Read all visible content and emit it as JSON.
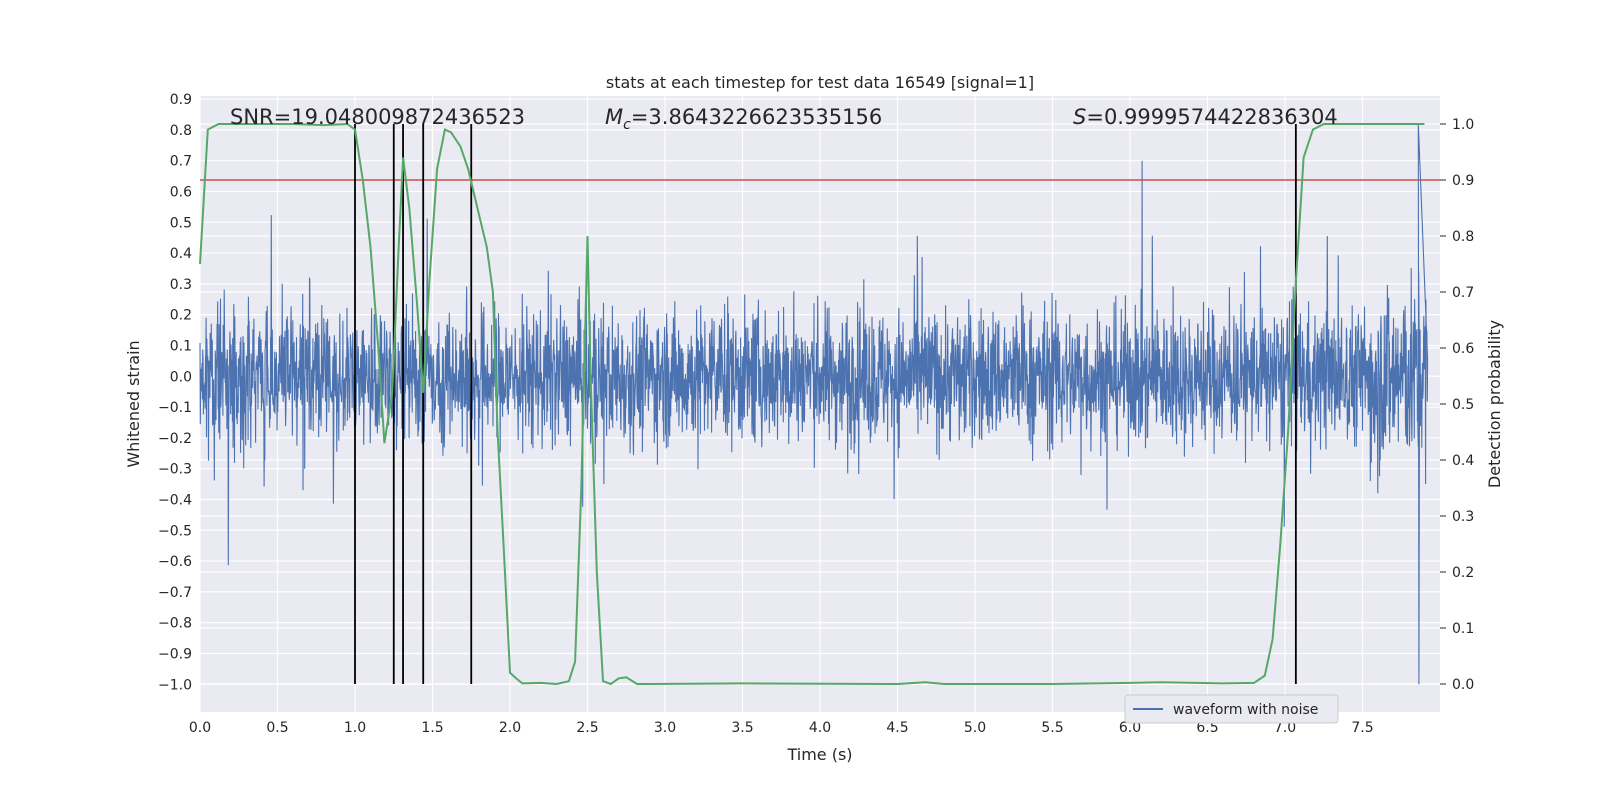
{
  "chart_data": {
    "type": "line",
    "title": "stats at each timestep for test data 16549 [signal=1]",
    "xlabel": "Time (s)",
    "ylabel_left": "Whitened strain",
    "ylabel_right": "Detection probability",
    "xlim": [
      0.0,
      8.0
    ],
    "ylim_left": [
      -1.09,
      0.91
    ],
    "ylim_right": [
      -0.05,
      1.05
    ],
    "x_ticks": [
      "0.0",
      "0.5",
      "1.0",
      "1.5",
      "2.0",
      "2.5",
      "3.0",
      "3.5",
      "4.0",
      "4.5",
      "5.0",
      "5.5",
      "6.0",
      "6.5",
      "7.0",
      "7.5"
    ],
    "y_left_ticks": [
      "0.9",
      "0.8",
      "0.7",
      "0.6",
      "0.5",
      "0.4",
      "0.3",
      "0.2",
      "0.1",
      "0.0",
      "−0.1",
      "−0.2",
      "−0.3",
      "−0.4",
      "−0.5",
      "−0.6",
      "−0.7",
      "−0.8",
      "−0.9",
      "−1.0"
    ],
    "y_right_ticks": [
      "1.0",
      "0.9",
      "0.8",
      "0.7",
      "0.6",
      "0.5",
      "0.4",
      "0.3",
      "0.2",
      "0.1",
      "0.0"
    ],
    "annotations": {
      "snr_text": "SNR=19.048009872436523",
      "mc_prefix": "M",
      "mc_sub": "c",
      "mc_value": "=3.8643226623535156",
      "s_prefix": "S",
      "s_value": "=0.9999574422836304"
    },
    "threshold_probability": 0.9,
    "threshold_color": "#c44e52",
    "vertical_markers": [
      1.0,
      1.25,
      1.31,
      1.44,
      1.75,
      7.07
    ],
    "grid": true,
    "legend_placement": "lower-right",
    "series": [
      {
        "name": "waveform with noise",
        "axis": "left",
        "color": "#4c72b0",
        "description": "noisy whitened strain, approx. ±0.3 amplitude with spikes to ±0.7; max spike ~0.82 near 7.86 s, min ~−1.0 near 7.86 s",
        "envelope": {
          "typical_amplitude": 0.3,
          "spike_max": 0.82,
          "spike_min": -1.0
        }
      },
      {
        "axis": "right",
        "color": "#55a868",
        "x": [
          0.0,
          0.05,
          0.12,
          0.3,
          0.6,
          0.8,
          0.95,
          1.0,
          1.05,
          1.1,
          1.15,
          1.19,
          1.24,
          1.28,
          1.31,
          1.35,
          1.4,
          1.44,
          1.48,
          1.53,
          1.58,
          1.62,
          1.68,
          1.73,
          1.79,
          1.85,
          1.89,
          1.92,
          1.96,
          2.0,
          2.04,
          2.08,
          2.2,
          2.3,
          2.38,
          2.42,
          2.46,
          2.5,
          2.52,
          2.56,
          2.6,
          2.65,
          2.7,
          2.75,
          2.82,
          2.9,
          3.5,
          4.5,
          4.68,
          4.8,
          5.5,
          6.0,
          6.2,
          6.6,
          6.8,
          6.87,
          6.92,
          6.97,
          7.02,
          7.07,
          7.12,
          7.18,
          7.25,
          7.35,
          7.6,
          7.9
        ],
        "y": [
          0.75,
          0.99,
          1.0,
          1.0,
          1.0,
          0.998,
          1.0,
          0.99,
          0.9,
          0.78,
          0.6,
          0.43,
          0.52,
          0.77,
          0.94,
          0.85,
          0.68,
          0.52,
          0.72,
          0.92,
          0.99,
          0.985,
          0.96,
          0.92,
          0.85,
          0.78,
          0.7,
          0.45,
          0.24,
          0.02,
          0.01,
          0.001,
          0.002,
          0.0,
          0.005,
          0.04,
          0.35,
          0.8,
          0.55,
          0.2,
          0.005,
          0.0,
          0.01,
          0.012,
          0.0,
          0.0,
          0.001,
          0.0,
          0.003,
          0.0,
          0.0,
          0.002,
          0.003,
          0.001,
          0.002,
          0.015,
          0.08,
          0.25,
          0.45,
          0.72,
          0.94,
          0.99,
          1.0,
          1.0,
          1.0,
          1.0
        ]
      }
    ]
  }
}
